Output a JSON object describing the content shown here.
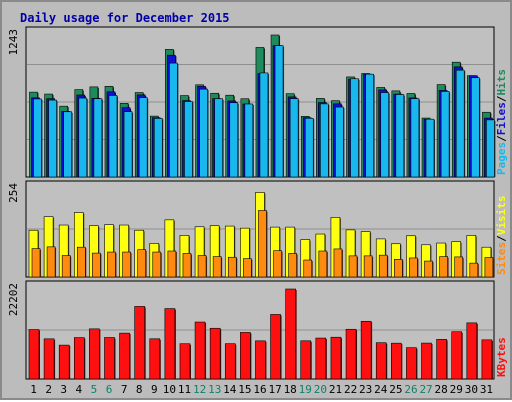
{
  "title": "Daily usage for December 2015",
  "colors": {
    "hits": "#1f8a5b",
    "files": "#1010d0",
    "pages": "#18b8ee",
    "visits": "#ffff10",
    "sites": "#ff8a10",
    "kbytes": "#ff1010",
    "weekend_day": "#10806a",
    "weekday": "#000000",
    "panel": "#c0c0c0",
    "grid": "#909090"
  },
  "chart_data": [
    {
      "type": "bar",
      "title": "Daily usage for December 2015",
      "categories": [
        "1",
        "2",
        "3",
        "4",
        "5",
        "6",
        "7",
        "8",
        "9",
        "10",
        "11",
        "12",
        "13",
        "14",
        "15",
        "16",
        "17",
        "18",
        "19",
        "20",
        "21",
        "22",
        "23",
        "24",
        "25",
        "26",
        "27",
        "28",
        "29",
        "30",
        "31"
      ],
      "weekend_days": [
        "5",
        "6",
        "12",
        "13",
        "19",
        "20",
        "26",
        "27"
      ],
      "ylim": [
        0,
        1243
      ],
      "max_label": "1243",
      "legend": [
        "Pages",
        "/",
        "Files",
        "/",
        "Hits"
      ],
      "series": [
        {
          "name": "Hits",
          "values": [
            743,
            726,
            620,
            765,
            789,
            794,
            645,
            739,
            533,
            1117,
            713,
            807,
            733,
            716,
            685,
            1134,
            1243,
            729,
            531,
            688,
            668,
            876,
            906,
            784,
            754,
            731,
            516,
            809,
            1005,
            887,
            567
          ]
        },
        {
          "name": "Files",
          "values": [
            693,
            686,
            574,
            718,
            689,
            746,
            607,
            719,
            519,
            1066,
            669,
            793,
            686,
            666,
            639,
            905,
            1150,
            701,
            519,
            652,
            640,
            856,
            900,
            762,
            726,
            692,
            506,
            758,
            964,
            887,
            516
          ]
        },
        {
          "name": "Pages",
          "values": [
            683,
            673,
            571,
            691,
            686,
            714,
            572,
            695,
            513,
            997,
            661,
            769,
            685,
            650,
            639,
            911,
            1150,
            686,
            514,
            640,
            612,
            860,
            900,
            739,
            722,
            686,
            506,
            749,
            935,
            869,
            500
          ]
        }
      ]
    },
    {
      "type": "bar",
      "categories": [
        "1",
        "2",
        "3",
        "4",
        "5",
        "6",
        "7",
        "8",
        "9",
        "10",
        "11",
        "12",
        "13",
        "14",
        "15",
        "16",
        "17",
        "18",
        "19",
        "20",
        "21",
        "22",
        "23",
        "24",
        "25",
        "26",
        "27",
        "28",
        "29",
        "30",
        "31"
      ],
      "ylim": [
        0,
        254
      ],
      "max_label": "254",
      "legend": [
        "Sites",
        "/",
        "Visits"
      ],
      "series": [
        {
          "name": "Visits",
          "values": [
            135,
            174,
            150,
            186,
            148,
            151,
            150,
            135,
            97,
            165,
            120,
            145,
            148,
            147,
            141,
            244,
            144,
            144,
            108,
            124,
            172,
            136,
            131,
            110,
            96,
            119,
            93,
            98,
            102,
            120,
            86
          ]
        },
        {
          "name": "Sites",
          "values": [
            82,
            87,
            62,
            86,
            69,
            72,
            72,
            79,
            72,
            75,
            68,
            62,
            59,
            57,
            53,
            192,
            76,
            68,
            49,
            75,
            81,
            61,
            61,
            63,
            51,
            55,
            46,
            59,
            58,
            40,
            56
          ]
        }
      ]
    },
    {
      "type": "bar",
      "categories": [
        "1",
        "2",
        "3",
        "4",
        "5",
        "6",
        "7",
        "8",
        "9",
        "10",
        "11",
        "12",
        "13",
        "14",
        "15",
        "16",
        "17",
        "18",
        "19",
        "20",
        "21",
        "22",
        "23",
        "24",
        "25",
        "26",
        "27",
        "28",
        "29",
        "30",
        "31"
      ],
      "ylim": [
        0,
        22202
      ],
      "max_label": "22202",
      "legend": [
        "KBytes"
      ],
      "series": [
        {
          "name": "KBytes",
          "values": [
            12200,
            9910,
            8360,
            10220,
            12370,
            10240,
            11320,
            17900,
            9920,
            17370,
            8700,
            14050,
            12520,
            8710,
            11490,
            9410,
            15920,
            22200,
            9420,
            10100,
            10310,
            12270,
            14240,
            8950,
            8840,
            7730,
            8860,
            9780,
            11660,
            13850,
            9660
          ]
        }
      ]
    }
  ]
}
